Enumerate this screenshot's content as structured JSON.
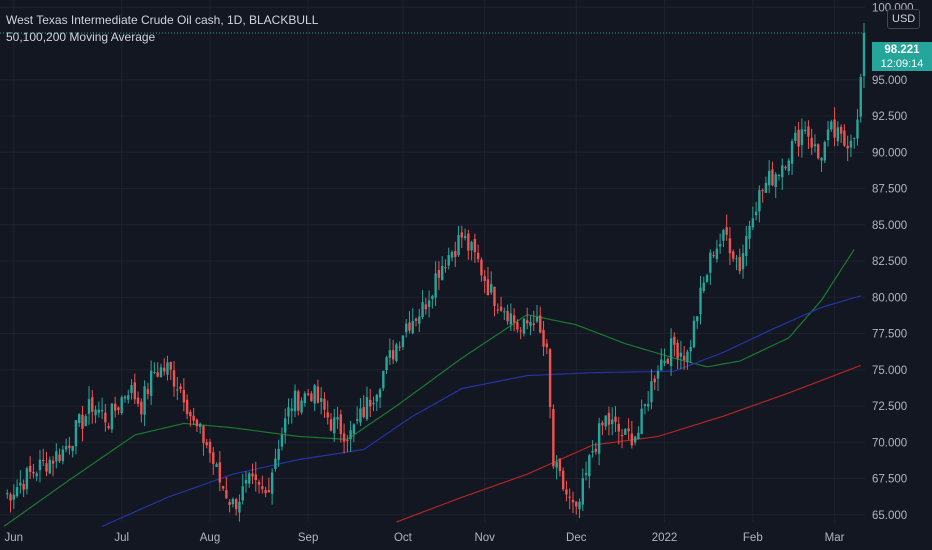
{
  "legend": {
    "title": "West Texas Intermediate Crude Oil cash, 1D, BLACKBULL",
    "indicator": "50,100,200 Moving Average"
  },
  "currency": "USD",
  "last_price": {
    "value": "98.221",
    "countdown": "12:09:14"
  },
  "colors": {
    "background": "#131722",
    "grid": "#1e222d",
    "up": "#26a69a",
    "down": "#ef5350",
    "ma50": "#1b7a2c",
    "ma100": "#2433a6",
    "ma200": "#b32424",
    "axis_text": "#b2b5be"
  },
  "chart_data": {
    "type": "candlestick",
    "x_ticks": [
      "Jun",
      "Jul",
      "Aug",
      "Sep",
      "Oct",
      "Nov",
      "Dec",
      "2022",
      "Feb",
      "Mar"
    ],
    "y_ticks": [
      "65.000",
      "67.500",
      "70.000",
      "72.500",
      "75.000",
      "77.500",
      "80.000",
      "82.500",
      "85.000",
      "87.500",
      "90.000",
      "92.500",
      "95.000",
      "100.000"
    ],
    "ylim": [
      64.5,
      100.5
    ],
    "last_value": 98.221,
    "close_path": [
      [
        0,
        66.2
      ],
      [
        10,
        68.2
      ],
      [
        18,
        69.4
      ],
      [
        27,
        72.6
      ],
      [
        32,
        71.5
      ],
      [
        38,
        73.8
      ],
      [
        42,
        72.6
      ],
      [
        46,
        74.9
      ],
      [
        50,
        75.1
      ],
      [
        55,
        73.4
      ],
      [
        58,
        71.2
      ],
      [
        62,
        69.9
      ],
      [
        66,
        67.3
      ],
      [
        70,
        65.7
      ],
      [
        75,
        67.1
      ],
      [
        80,
        66.4
      ],
      [
        84,
        70.0
      ],
      [
        88,
        72.7
      ],
      [
        94,
        73.5
      ],
      [
        100,
        71.4
      ],
      [
        106,
        70.5
      ],
      [
        112,
        73.0
      ],
      [
        118,
        75.8
      ],
      [
        123,
        78.2
      ],
      [
        128,
        79.2
      ],
      [
        133,
        82.0
      ],
      [
        140,
        84.2
      ],
      [
        145,
        82.4
      ],
      [
        149,
        80.3
      ],
      [
        154,
        79.1
      ],
      [
        158,
        77.6
      ],
      [
        162,
        78.7
      ],
      [
        166,
        75.9
      ],
      [
        168,
        68.4
      ],
      [
        172,
        66.4
      ],
      [
        175,
        64.9
      ],
      [
        180,
        69.5
      ],
      [
        184,
        71.6
      ],
      [
        190,
        70.3
      ],
      [
        194,
        70.7
      ],
      [
        197,
        73.2
      ],
      [
        200,
        75.4
      ],
      [
        205,
        76.7
      ],
      [
        209,
        76.0
      ],
      [
        213,
        80.0
      ],
      [
        217,
        83.4
      ],
      [
        221,
        84.2
      ],
      [
        225,
        82.2
      ],
      [
        229,
        86.2
      ],
      [
        233,
        87.8
      ],
      [
        237,
        88.9
      ],
      [
        241,
        90.4
      ],
      [
        245,
        91.9
      ],
      [
        249,
        89.6
      ],
      [
        253,
        91.4
      ],
      [
        257,
        90.6
      ],
      [
        261,
        91.9
      ],
      [
        263,
        98.2
      ]
    ],
    "moving_averages": [
      {
        "period": 50,
        "color": "#1b7a2c",
        "points": [
          [
            0,
            64.2
          ],
          [
            20,
            67.4
          ],
          [
            40,
            70.5
          ],
          [
            55,
            71.3
          ],
          [
            70,
            71.0
          ],
          [
            90,
            70.4
          ],
          [
            105,
            70.2
          ],
          [
            120,
            72.5
          ],
          [
            140,
            75.8
          ],
          [
            160,
            78.8
          ],
          [
            175,
            78.1
          ],
          [
            190,
            76.8
          ],
          [
            205,
            75.8
          ],
          [
            215,
            75.2
          ],
          [
            225,
            75.6
          ],
          [
            240,
            77.2
          ],
          [
            250,
            79.8
          ],
          [
            260,
            83.3
          ]
        ]
      },
      {
        "period": 100,
        "color": "#2433a6",
        "points": [
          [
            30,
            64.2
          ],
          [
            50,
            66.2
          ],
          [
            70,
            67.8
          ],
          [
            90,
            68.8
          ],
          [
            110,
            69.5
          ],
          [
            125,
            71.8
          ],
          [
            140,
            73.7
          ],
          [
            160,
            74.6
          ],
          [
            180,
            74.8
          ],
          [
            205,
            74.9
          ],
          [
            220,
            76.2
          ],
          [
            235,
            77.8
          ],
          [
            250,
            79.3
          ],
          [
            262,
            80.1
          ]
        ]
      },
      {
        "period": 200,
        "color": "#b32424",
        "points": [
          [
            120,
            64.5
          ],
          [
            140,
            66.2
          ],
          [
            160,
            67.8
          ],
          [
            180,
            69.8
          ],
          [
            200,
            70.4
          ],
          [
            220,
            71.8
          ],
          [
            240,
            73.4
          ],
          [
            262,
            75.3
          ]
        ]
      }
    ]
  }
}
